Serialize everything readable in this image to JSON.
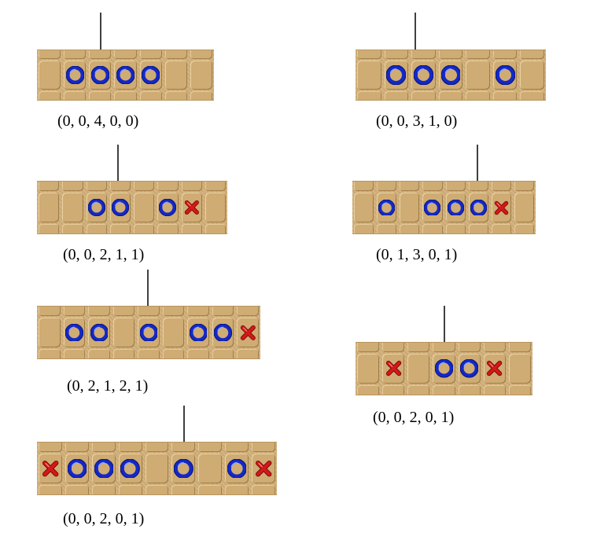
{
  "colors": {
    "o_piece": "#1428c8",
    "x_piece": "#d51818",
    "board": "#d2b07a",
    "arrow": "#000000"
  },
  "panels": [
    {
      "id": "p1",
      "cells": [
        "",
        "o",
        "o",
        "o",
        "o",
        "",
        ""
      ],
      "arrow_cell": 2,
      "label": "(0, 0, 4, 0, 0)"
    },
    {
      "id": "p2",
      "cells": [
        "",
        "o",
        "o",
        "o",
        "",
        "o",
        ""
      ],
      "arrow_cell": 2,
      "label": "(0, 0, 3, 1, 0)"
    },
    {
      "id": "p3",
      "cells": [
        "",
        "",
        "o",
        "o",
        "",
        "o",
        "x",
        ""
      ],
      "arrow_cell": 3,
      "label": "(0, 0, 2, 1, 1)"
    },
    {
      "id": "p4",
      "cells": [
        "",
        "o",
        "",
        "o",
        "o",
        "o",
        "x",
        ""
      ],
      "arrow_cell": 5,
      "label": "(0, 1, 3, 0, 1)"
    },
    {
      "id": "p5",
      "cells": [
        "",
        "o",
        "o",
        "",
        "o",
        "",
        "o",
        "o",
        "x"
      ],
      "arrow_cell": 4,
      "label": "(0, 2, 1, 2, 1)"
    },
    {
      "id": "p6",
      "cells": [
        "",
        "x",
        "",
        "o",
        "o",
        "x",
        ""
      ],
      "arrow_cell": 3,
      "label": "(0, 0, 2, 0, 1)"
    },
    {
      "id": "p7",
      "cells": [
        "x",
        "o",
        "o",
        "o",
        "",
        "o",
        "",
        "o",
        "x"
      ],
      "arrow_cell": 5,
      "label": "(0, 0, 2, 0, 1)"
    }
  ]
}
